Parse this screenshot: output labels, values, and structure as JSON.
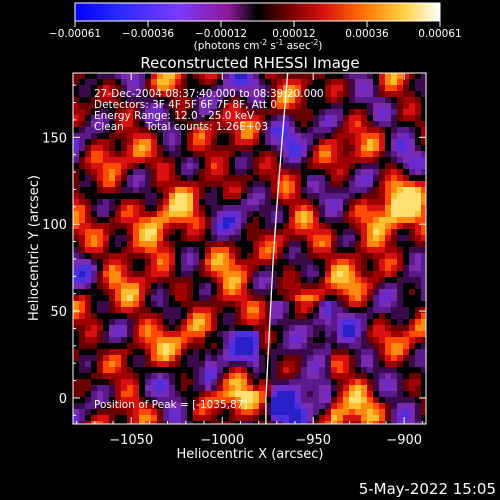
{
  "colorbar": {
    "ticks": [
      "-0.00061",
      "-0.00036",
      "-0.00012",
      "0.00012",
      "0.00036",
      "0.00061"
    ],
    "units_prefix": "(photons cm",
    "units_exp1": "-2",
    "units_mid1": " s",
    "units_exp2": "-1",
    "units_mid2": " asec",
    "units_exp3": "-2",
    "units_suffix": ")"
  },
  "annotations": {
    "time_range": "27-Dec-2004 08:37:40.000 to 08:39:20.000",
    "detectors": "Detectors: 3F 4F 5F 6F 7F 8F, Att 0",
    "energy_range": "Energy Range: 12.0 - 25.0 keV",
    "algorithm": "Clean",
    "total_counts": "Total counts: 1.26E+03",
    "peak_position": "Position of Peak = [-1035,87]"
  },
  "footer_date": "5-May-2022 15:05",
  "chart_data": {
    "type": "heatmap",
    "title": "Reconstructed RHESSI Image",
    "xlabel": "Heliocentric X (arcsec)",
    "ylabel": "Heliocentric Y (arcsec)",
    "xlim": [
      -1082,
      -888
    ],
    "ylim": [
      -15,
      187
    ],
    "xticks": [
      -1050,
      -1000,
      -950,
      -900
    ],
    "yticks": [
      0,
      50,
      100,
      150
    ],
    "xtick_labels": [
      "−1050",
      "−1000",
      "−950",
      "−900"
    ],
    "ytick_labels": [
      "0",
      "50",
      "100",
      "150"
    ],
    "colorscale": "red-temperature (negative: blue/purple, positive: red/orange/yellow/white)",
    "value_range": [
      -0.00061,
      0.00061
    ],
    "peak": {
      "x": -1035,
      "y": 87
    },
    "limb_curve": [
      [
        -964,
        187
      ],
      [
        -967,
        150
      ],
      [
        -970,
        110
      ],
      [
        -972,
        80
      ],
      [
        -974,
        40
      ],
      [
        -976,
        0
      ],
      [
        -976,
        -15
      ]
    ]
  }
}
